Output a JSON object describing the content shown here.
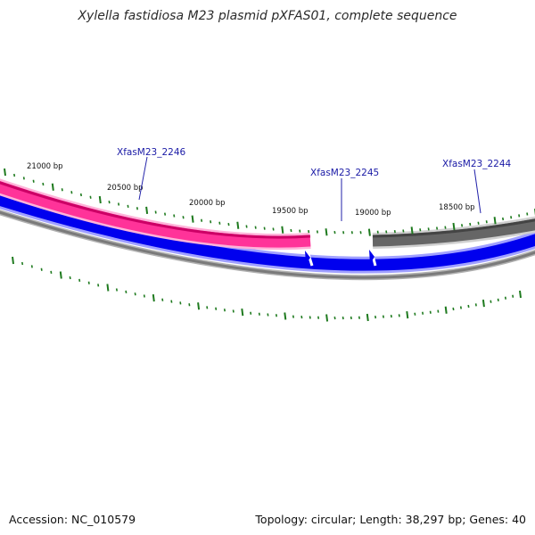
{
  "title": "Xylella fastidiosa M23 plasmid pXFAS01, complete sequence",
  "footer": {
    "accession": "Accession: NC_010579",
    "summary": "Topology: circular; Length: 38,297 bp; Genes: 40"
  },
  "map": {
    "topology": "circular",
    "length_bp": 38297,
    "gene_count": 40,
    "position_labels": [
      "21000 bp",
      "20500 bp",
      "20000 bp",
      "19500 bp",
      "19000 bp",
      "18500 bp"
    ],
    "genes": [
      {
        "label": "XfasM23_2246",
        "color": "#ff3399",
        "track": "outer",
        "strand": "forward"
      },
      {
        "label": "XfasM23_2245",
        "color": "#0000ff",
        "track": "inner",
        "strand": "reverse"
      },
      {
        "label": "XfasM23_2244",
        "color": "#666666",
        "track": "outer",
        "strand": "forward"
      }
    ],
    "colors": {
      "ticks": "#1e7a1e",
      "cds_forward": "#ff3399",
      "cds_reverse": "#0000ff",
      "backbone": "#808080",
      "other_feature": "#666666"
    }
  }
}
